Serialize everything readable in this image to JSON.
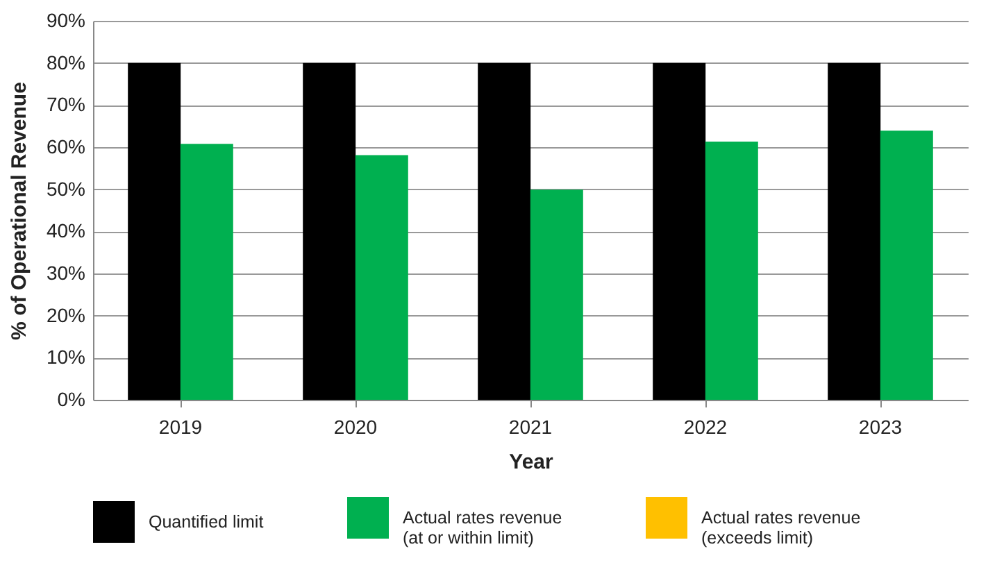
{
  "chart_data": {
    "type": "bar",
    "xlabel": "Year",
    "ylabel": "% of Operational Revenue",
    "categories": [
      "2019",
      "2020",
      "2021",
      "2022",
      "2023"
    ],
    "series": [
      {
        "name": "Quantified limit",
        "color": "#000000",
        "values": [
          80,
          80,
          80,
          80,
          80
        ]
      },
      {
        "name": "Actual rates revenue (at or within limit)",
        "color": "#00b050",
        "values": [
          60.8,
          58.1,
          49.9,
          61.3,
          63.9
        ]
      },
      {
        "name": "Actual rates revenue (exceeds limit)",
        "color": "#ffc000",
        "values": [
          null,
          null,
          null,
          null,
          null
        ]
      }
    ],
    "ylim": [
      0,
      90
    ],
    "yticks": [
      {
        "value": 0,
        "label": "0%"
      },
      {
        "value": 10,
        "label": "10%"
      },
      {
        "value": 20,
        "label": "20%"
      },
      {
        "value": 30,
        "label": "30%"
      },
      {
        "value": 40,
        "label": "40%"
      },
      {
        "value": 50,
        "label": "50%"
      },
      {
        "value": 60,
        "label": "60%"
      },
      {
        "value": 70,
        "label": "70%"
      },
      {
        "value": 80,
        "label": "80%"
      },
      {
        "value": 90,
        "label": "90%"
      }
    ],
    "grid": "y",
    "legend": "bottom"
  }
}
